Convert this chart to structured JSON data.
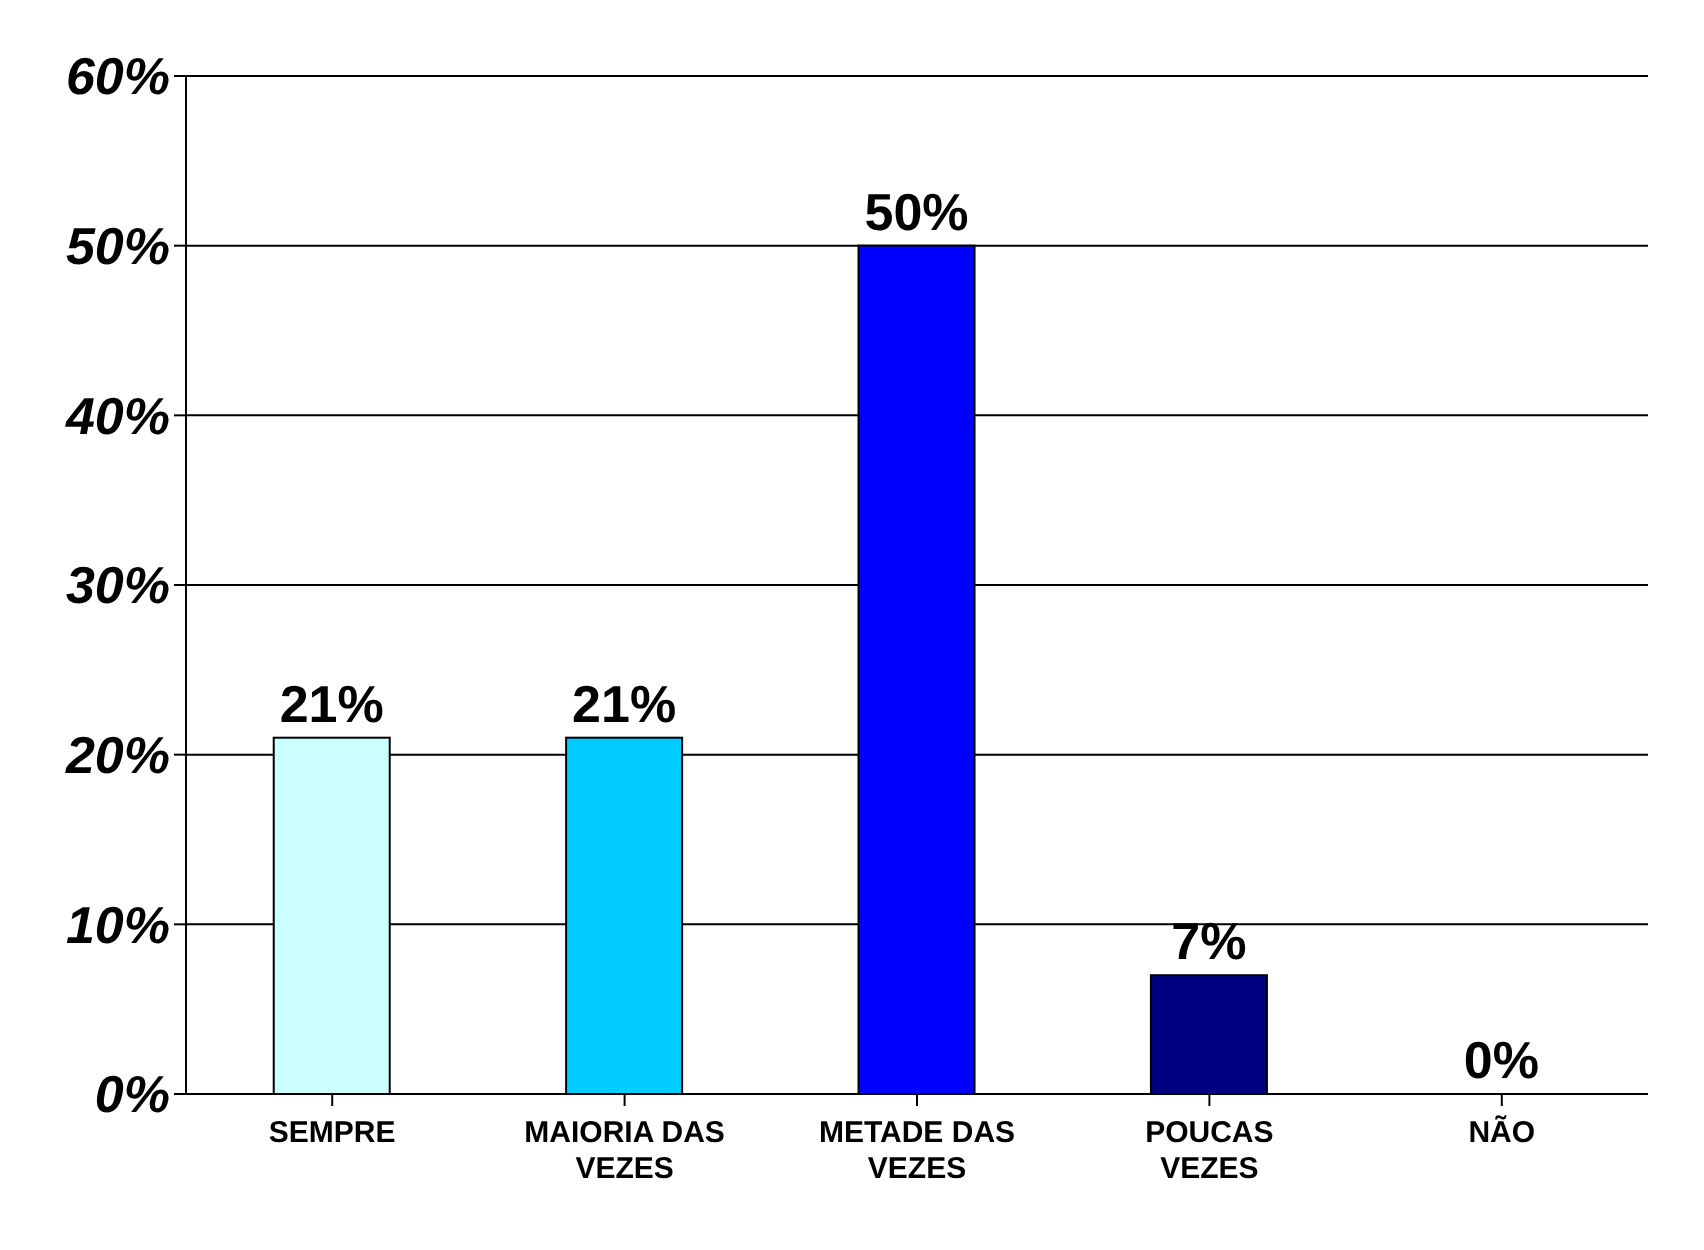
{
  "chart_data": {
    "type": "bar",
    "categories": [
      "SEMPRE",
      "MAIORIA DAS VEZES",
      "METADE DAS VEZES",
      "POUCAS VEZES",
      "NÃO"
    ],
    "values": [
      21,
      21,
      50,
      7,
      0
    ],
    "colors": [
      "#ccffff",
      "#00ccff",
      "#0000ff",
      "#000080",
      "#000000"
    ],
    "value_labels": [
      "21%",
      "21%",
      "50%",
      "7%",
      "0%"
    ],
    "ylim": [
      0,
      60
    ],
    "yticks": [
      {
        "value": 0,
        "label": "0%"
      },
      {
        "value": 10,
        "label": "10%"
      },
      {
        "value": 20,
        "label": "20%"
      },
      {
        "value": 30,
        "label": "30%"
      },
      {
        "value": 40,
        "label": "40%"
      },
      {
        "value": 50,
        "label": "50%"
      },
      {
        "value": 60,
        "label": "60%"
      }
    ],
    "grid": "y"
  }
}
